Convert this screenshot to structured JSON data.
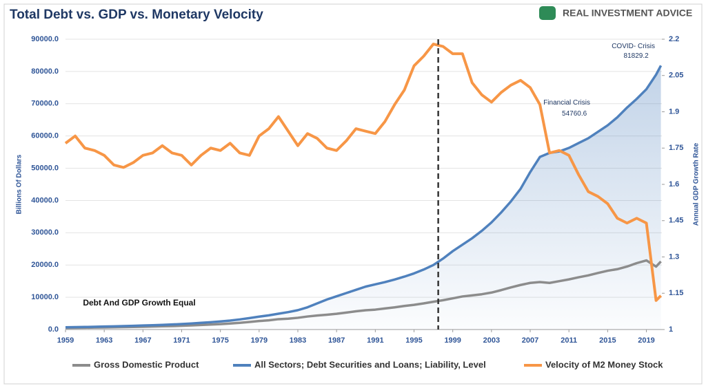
{
  "chart_data": {
    "type": "line",
    "title": "Total Debt vs. GDP vs. Monetary Velocity",
    "source": "REAL INVESTMENT ADVICE",
    "y_label": "Billions Of Dollars",
    "y2_label": "Annual GDP Growth Rate",
    "x": [
      1959,
      1960,
      1961,
      1962,
      1963,
      1964,
      1965,
      1966,
      1967,
      1968,
      1969,
      1970,
      1971,
      1972,
      1973,
      1974,
      1975,
      1976,
      1977,
      1978,
      1979,
      1980,
      1981,
      1982,
      1983,
      1984,
      1985,
      1986,
      1987,
      1988,
      1989,
      1990,
      1991,
      1992,
      1993,
      1994,
      1995,
      1996,
      1997,
      1998,
      1999,
      2000,
      2001,
      2002,
      2003,
      2004,
      2005,
      2006,
      2007,
      2008,
      2009,
      2010,
      2011,
      2012,
      2013,
      2014,
      2015,
      2016,
      2017,
      2018,
      2019,
      2020,
      2020.5
    ],
    "xlim": [
      1959,
      2020.6
    ],
    "xticks": [
      1959,
      1963,
      1967,
      1971,
      1975,
      1979,
      1983,
      1987,
      1991,
      1995,
      1999,
      2003,
      2007,
      2011,
      2015,
      2019
    ],
    "ylim": [
      0,
      90000
    ],
    "yticks": [
      {
        "value": 0,
        "label": "0.0"
      },
      {
        "value": 10000,
        "label": "10000.0"
      },
      {
        "value": 20000,
        "label": "20000.0"
      },
      {
        "value": 30000,
        "label": "30000.0"
      },
      {
        "value": 40000,
        "label": "40000.0"
      },
      {
        "value": 50000,
        "label": "50000.0"
      },
      {
        "value": 60000,
        "label": "60000.0"
      },
      {
        "value": 70000,
        "label": "70000.0"
      },
      {
        "value": 80000,
        "label": "80000.0"
      },
      {
        "value": 90000,
        "label": "90000.0"
      }
    ],
    "y2lim": [
      1,
      2.2
    ],
    "y2ticks": [
      1,
      1.15,
      1.3,
      1.45,
      1.6,
      1.75,
      1.9,
      2.05,
      2.2
    ],
    "grid": true,
    "series": [
      {
        "name": "Gross Domestic Product",
        "color": "#8c8c8c",
        "values": [
          510,
          540,
          560,
          600,
          640,
          690,
          740,
          810,
          860,
          940,
          1020,
          1070,
          1160,
          1280,
          1420,
          1550,
          1690,
          1870,
          2080,
          2350,
          2630,
          2860,
          3210,
          3350,
          3640,
          4040,
          4350,
          4590,
          4870,
          5250,
          5660,
          5980,
          6170,
          6540,
          6880,
          7310,
          7660,
          8100,
          8610,
          9090,
          9660,
          10250,
          10580,
          10940,
          11460,
          12210,
          13040,
          13810,
          14450,
          14710,
          14450,
          14990,
          15540,
          16200,
          16780,
          17520,
          18220,
          18710,
          19520,
          20580,
          21430,
          19500,
          21100
        ]
      },
      {
        "name": "All Sectors; Debt Securities and Loans; Liability, Level",
        "color": "#4f81bd",
        "values": [
          700,
          740,
          790,
          850,
          920,
          990,
          1070,
          1150,
          1240,
          1340,
          1450,
          1560,
          1700,
          1880,
          2080,
          2280,
          2500,
          2780,
          3130,
          3550,
          4000,
          4400,
          4900,
          5400,
          6000,
          6900,
          8100,
          9300,
          10300,
          11300,
          12300,
          13300,
          14000,
          14700,
          15500,
          16400,
          17400,
          18600,
          20000,
          22000,
          24300,
          26300,
          28300,
          30600,
          33200,
          36300,
          39700,
          43600,
          48800,
          53500,
          54760.6,
          55200,
          56300,
          57800,
          59300,
          61300,
          63300,
          65800,
          68800,
          71500,
          74500,
          79000,
          81829.2
        ]
      },
      {
        "name": "Velocity of M2 Money Stock",
        "color": "#f79646",
        "axis": "y2",
        "values": [
          1.77,
          1.8,
          1.75,
          1.74,
          1.72,
          1.68,
          1.67,
          1.69,
          1.72,
          1.73,
          1.76,
          1.73,
          1.72,
          1.68,
          1.72,
          1.75,
          1.74,
          1.77,
          1.73,
          1.72,
          1.8,
          1.83,
          1.88,
          1.82,
          1.76,
          1.81,
          1.79,
          1.75,
          1.74,
          1.78,
          1.83,
          1.82,
          1.81,
          1.86,
          1.93,
          1.99,
          2.09,
          2.13,
          2.18,
          2.17,
          2.14,
          2.14,
          2.02,
          1.97,
          1.94,
          1.98,
          2.01,
          2.03,
          2.0,
          1.93,
          1.73,
          1.74,
          1.72,
          1.64,
          1.57,
          1.55,
          1.52,
          1.46,
          1.44,
          1.46,
          1.44,
          1.12,
          1.14
        ]
      }
    ],
    "reference_line": {
      "x": 1997.5
    },
    "annotations": [
      {
        "text": "COVID- Crisis",
        "x": 2020.5,
        "value": 81829.2
      },
      {
        "text": "Financial Crisis",
        "x": 2009,
        "value": 54760.6
      },
      {
        "text": "Debt And GDP Growth Equal",
        "x": 1959.5,
        "value": 2000
      }
    ]
  }
}
